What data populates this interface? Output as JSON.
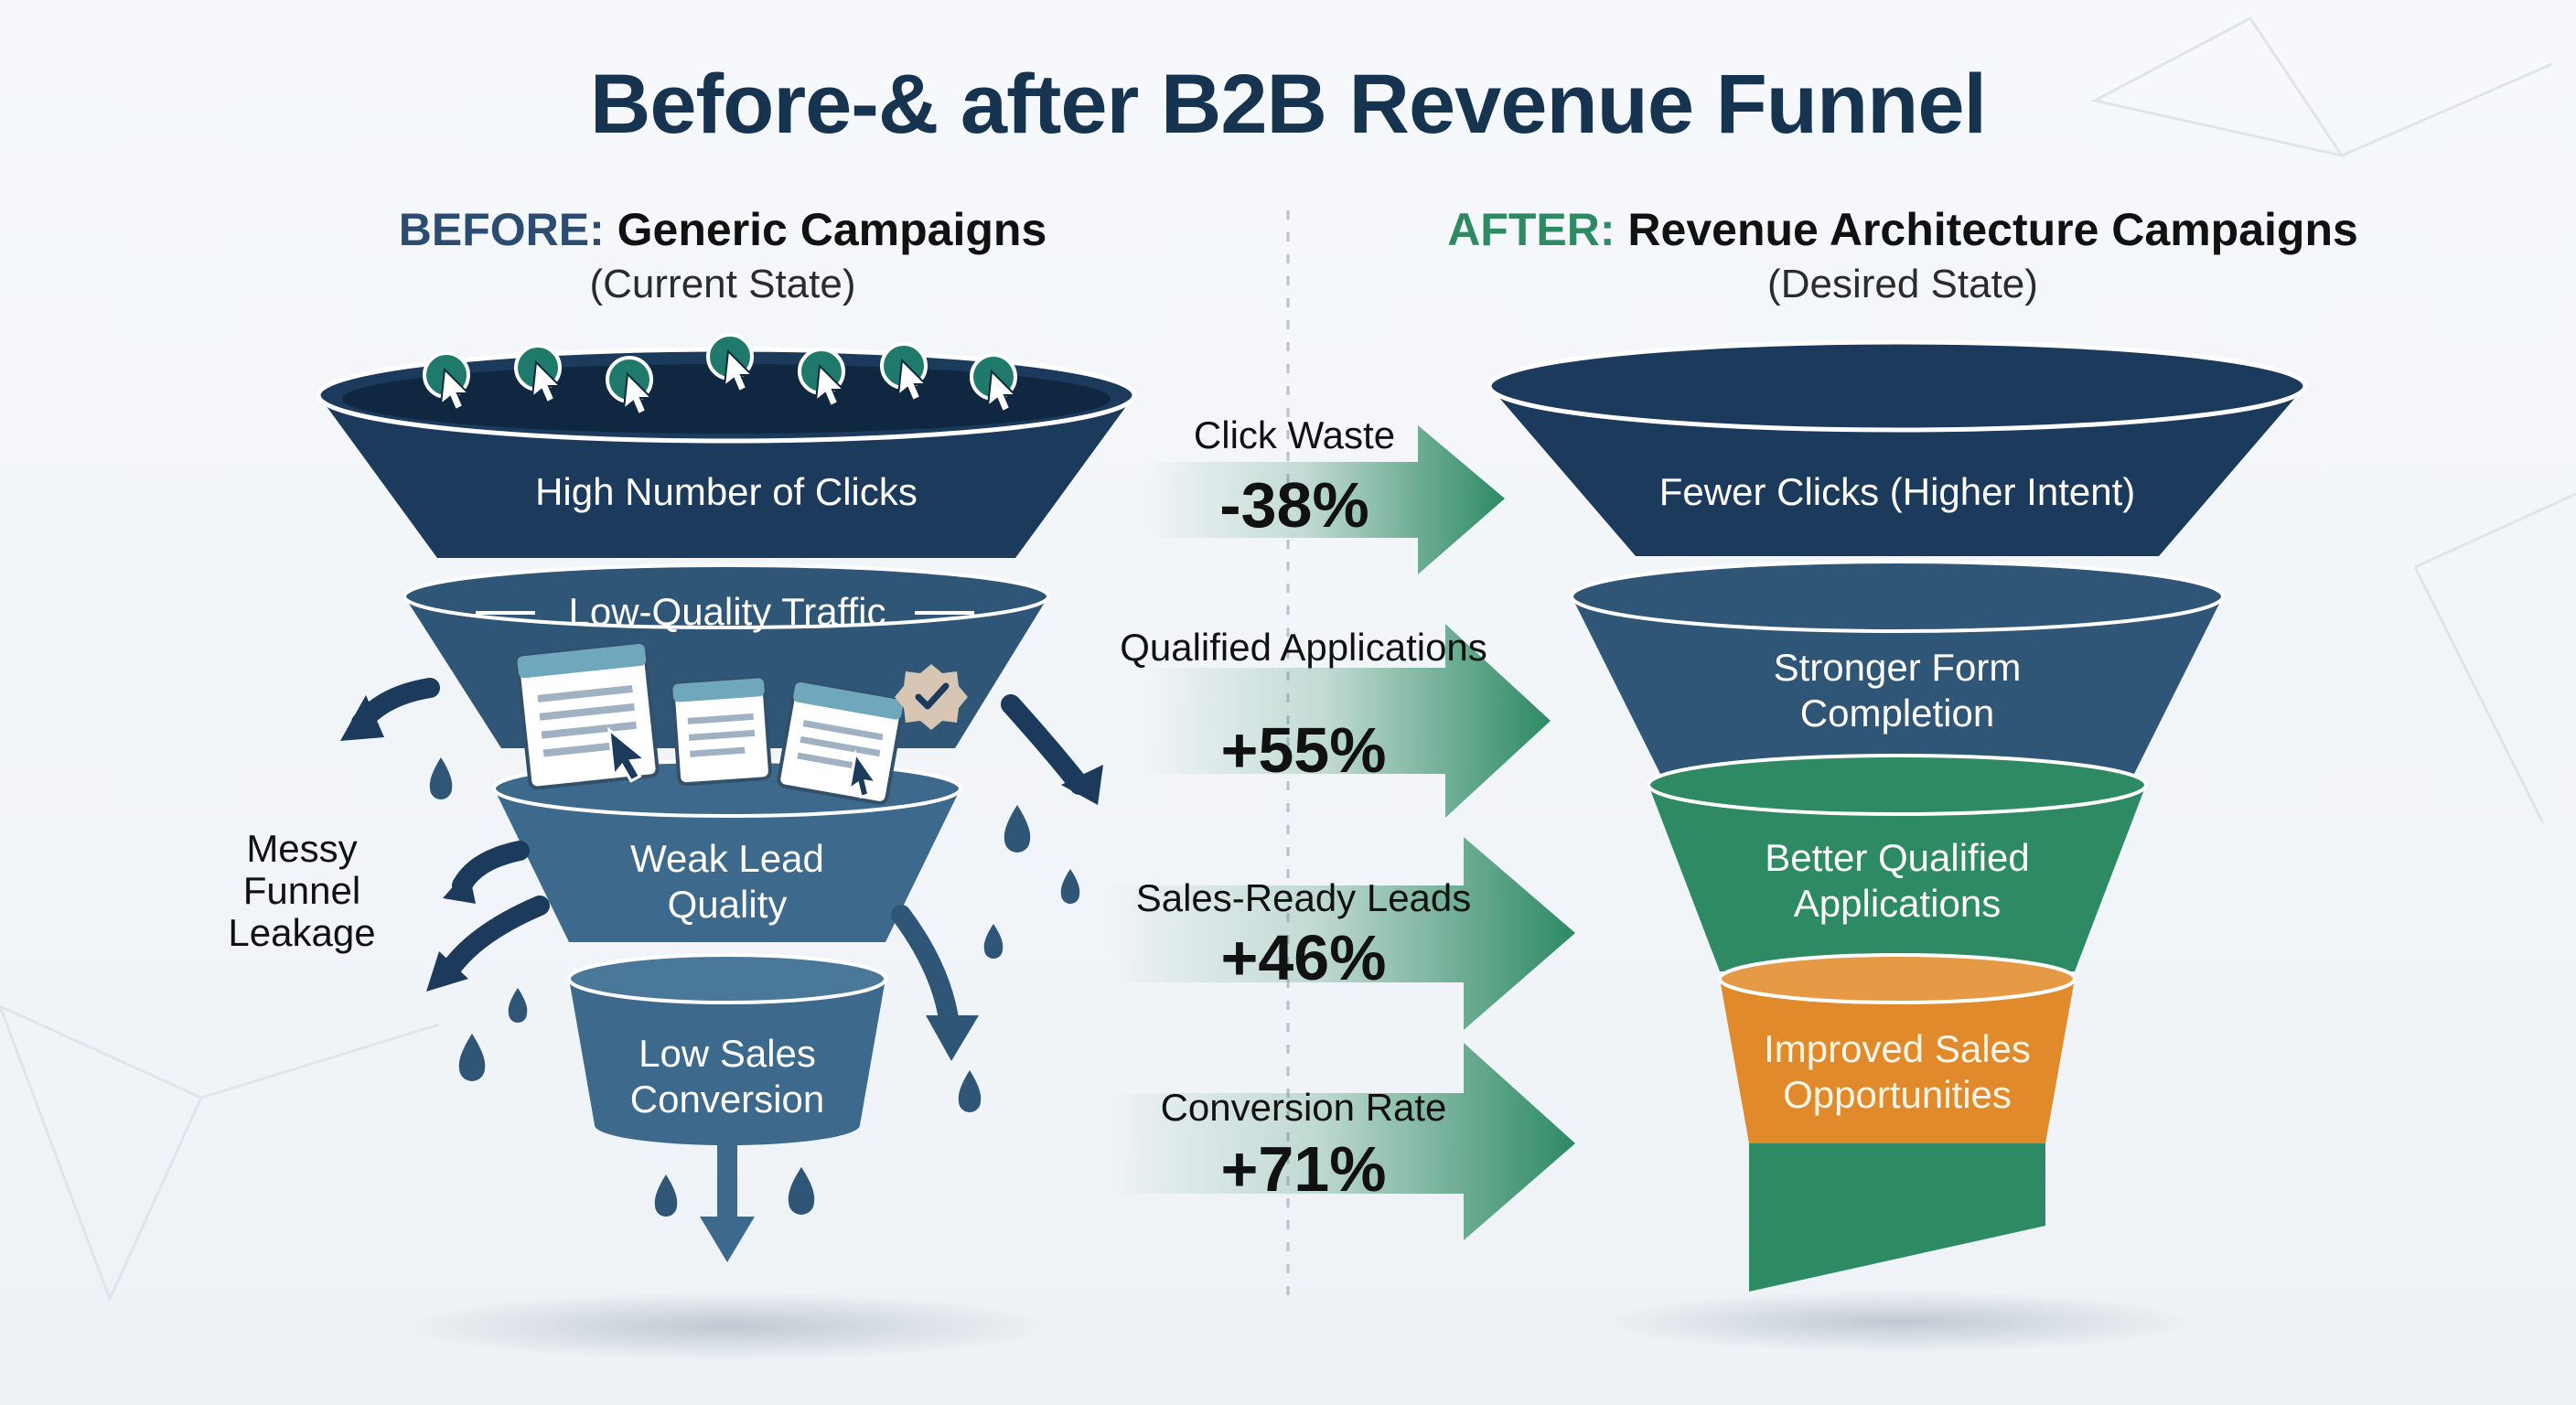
{
  "title": "Before-& after B2B Revenue Funnel",
  "before": {
    "tag": "BEFORE:",
    "heading": "Generic Campaigns",
    "subheading": "(Current State)",
    "stages": [
      "High Number of Clicks",
      "Low-Quality Traffic",
      "Weak Lead Quality",
      "Low Sales Conversion"
    ],
    "side_label": "Messy Funnel Leakage"
  },
  "after": {
    "tag": "AFTER:",
    "heading": "Revenue Architecture Campaigns",
    "subheading": "(Desired State)",
    "stages": [
      "Fewer Clicks (Higher Intent)",
      "Stronger Form Completion",
      "Better Qualified Applications",
      "Improved Sales Opportunities"
    ]
  },
  "metrics": [
    {
      "label": "Click Waste",
      "value": "-38%"
    },
    {
      "label": "Qualified Applications",
      "value": "+55%"
    },
    {
      "label": "Sales-Ready Leads",
      "value": "+46%"
    },
    {
      "label": "Conversion Rate",
      "value": "+71%"
    }
  ],
  "colors": {
    "navy": "#1b3a5c",
    "slate": "#2f5677",
    "steel": "#3d6a8c",
    "green": "#2d8a63",
    "orange": "#e08a2c",
    "teal_icon": "#1f7a6c"
  },
  "icons": [
    "cursor-click-icon",
    "document-window-icon",
    "checkmark-badge-icon",
    "droplet-icon",
    "leak-arrow-icon"
  ]
}
